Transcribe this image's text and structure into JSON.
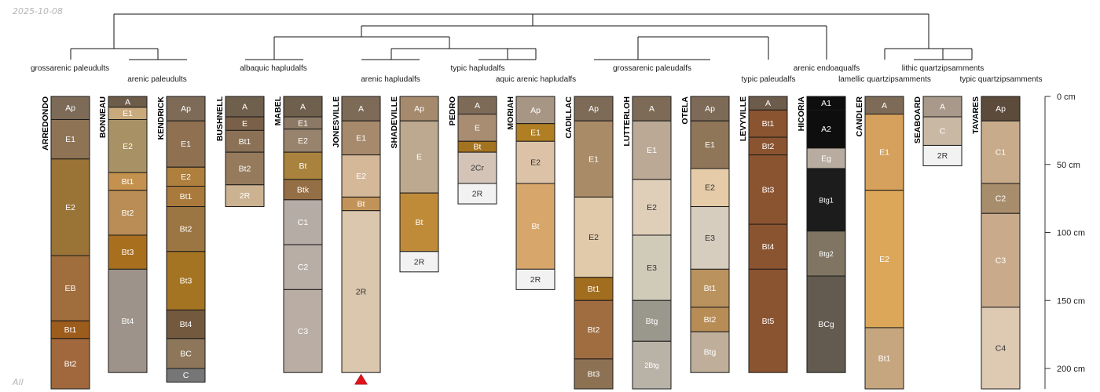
{
  "header": {
    "date": "2025-10-08",
    "footer": "All"
  },
  "depth_axis": {
    "unit": "cm",
    "ticks": [
      0,
      50,
      100,
      150,
      200
    ],
    "max_depth": 215
  },
  "taxa": [
    {
      "name": "grossarenic paleudults"
    },
    {
      "name": "arenic paleudults"
    },
    {
      "name": "albaquic hapludalfs"
    },
    {
      "name": "arenic hapludalfs"
    },
    {
      "name": "typic hapludalfs"
    },
    {
      "name": "aquic arenic hapludalfs"
    },
    {
      "name": "grossarenic paleudalfs"
    },
    {
      "name": "typic paleudalfs"
    },
    {
      "name": "arenic endoaqualfs"
    },
    {
      "name": "lamellic quartzipsamments"
    },
    {
      "name": "lithic quartzipsamments"
    },
    {
      "name": "typic quartzipsamments"
    }
  ],
  "profiles": [
    {
      "name": "ARREDONDO",
      "horizons": [
        {
          "name": "Ap",
          "top": 0,
          "bottom": 17,
          "color": "#7d6b58"
        },
        {
          "name": "E1",
          "top": 17,
          "bottom": 46,
          "color": "#8e7355"
        },
        {
          "name": "E2",
          "top": 46,
          "bottom": 117,
          "color": "#9a7337"
        },
        {
          "name": "EB",
          "top": 117,
          "bottom": 165,
          "color": "#a06d3c"
        },
        {
          "name": "Bt1",
          "top": 165,
          "bottom": 178,
          "color": "#9c5c1c"
        },
        {
          "name": "Bt2",
          "top": 178,
          "bottom": 215,
          "color": "#a0683c"
        }
      ]
    },
    {
      "name": "BONNEAU",
      "horizons": [
        {
          "name": "A",
          "top": 0,
          "bottom": 8,
          "color": "#6e5c4a"
        },
        {
          "name": "E1",
          "top": 8,
          "bottom": 17,
          "color": "#c9aa7c"
        },
        {
          "name": "E2",
          "top": 17,
          "bottom": 56,
          "color": "#a89164"
        },
        {
          "name": "Bt1",
          "top": 56,
          "bottom": 69,
          "color": "#c4914e"
        },
        {
          "name": "Bt2",
          "top": 69,
          "bottom": 102,
          "color": "#b98d55"
        },
        {
          "name": "Bt3",
          "top": 102,
          "bottom": 127,
          "color": "#a86f1e"
        },
        {
          "name": "Bt4",
          "top": 127,
          "bottom": 203,
          "color": "#9d938a"
        }
      ]
    },
    {
      "name": "KENDRICK",
      "horizons": [
        {
          "name": "Ap",
          "top": 0,
          "bottom": 18,
          "color": "#7d6b58"
        },
        {
          "name": "E1",
          "top": 18,
          "bottom": 52,
          "color": "#8f7152"
        },
        {
          "name": "E2",
          "top": 52,
          "bottom": 66,
          "color": "#ae7f3d"
        },
        {
          "name": "Bt1",
          "top": 66,
          "bottom": 81,
          "color": "#a97a3b"
        },
        {
          "name": "Bt2",
          "top": 81,
          "bottom": 114,
          "color": "#9c7642"
        },
        {
          "name": "Bt3",
          "top": 114,
          "bottom": 157,
          "color": "#a57423"
        },
        {
          "name": "Bt4",
          "top": 157,
          "bottom": 178,
          "color": "#735a3f"
        },
        {
          "name": "BC",
          "top": 178,
          "bottom": 200,
          "color": "#8d7659"
        },
        {
          "name": "C",
          "top": 200,
          "bottom": 210,
          "color": "#767676"
        }
      ]
    },
    {
      "name": "BUSHNELL",
      "horizons": [
        {
          "name": "A",
          "top": 0,
          "bottom": 15,
          "color": "#6f5f4d"
        },
        {
          "name": "E",
          "top": 15,
          "bottom": 25,
          "color": "#7a6048"
        },
        {
          "name": "Bt1",
          "top": 25,
          "bottom": 41,
          "color": "#8b7156"
        },
        {
          "name": "Bt2",
          "top": 41,
          "bottom": 65,
          "color": "#957a5c"
        },
        {
          "name": "2R",
          "top": 65,
          "bottom": 81,
          "color": "#cbb290"
        }
      ]
    },
    {
      "name": "MABEL",
      "horizons": [
        {
          "name": "A",
          "top": 0,
          "bottom": 15,
          "color": "#6f5f4d"
        },
        {
          "name": "E1",
          "top": 15,
          "bottom": 24,
          "color": "#8c7965"
        },
        {
          "name": "E2",
          "top": 24,
          "bottom": 41,
          "color": "#98846c"
        },
        {
          "name": "Bt",
          "top": 41,
          "bottom": 61,
          "color": "#a9833e"
        },
        {
          "name": "Btk",
          "top": 61,
          "bottom": 76,
          "color": "#946e44"
        },
        {
          "name": "C1",
          "top": 76,
          "bottom": 109,
          "color": "#b6aca6"
        },
        {
          "name": "C2",
          "top": 109,
          "bottom": 142,
          "color": "#b9aea6"
        },
        {
          "name": "C3",
          "top": 142,
          "bottom": 203,
          "color": "#baaea4"
        }
      ]
    },
    {
      "name": "JONESVILLE",
      "horizons": [
        {
          "name": "A",
          "top": 0,
          "bottom": 18,
          "color": "#7d6b58"
        },
        {
          "name": "E1",
          "top": 18,
          "bottom": 43,
          "color": "#a78a6c"
        },
        {
          "name": "E2",
          "top": 43,
          "bottom": 74,
          "color": "#d5b898"
        },
        {
          "name": "Bt",
          "top": 74,
          "bottom": 84,
          "color": "#c29358"
        },
        {
          "name": "2R",
          "top": 84,
          "bottom": 203,
          "color": "#dbc7ad"
        }
      ]
    },
    {
      "name": "SHADEVILLE",
      "horizons": [
        {
          "name": "Ap",
          "top": 0,
          "bottom": 18,
          "color": "#a68a6d"
        },
        {
          "name": "E",
          "top": 18,
          "bottom": 71,
          "color": "#bda98f"
        },
        {
          "name": "Bt",
          "top": 71,
          "bottom": 114,
          "color": "#c08b39"
        },
        {
          "name": "2R",
          "top": 114,
          "bottom": 129,
          "color": "#f2f2f2"
        }
      ]
    },
    {
      "name": "PEDRO",
      "horizons": [
        {
          "name": "A",
          "top": 0,
          "bottom": 13,
          "color": "#7d6b58"
        },
        {
          "name": "E",
          "top": 13,
          "bottom": 33,
          "color": "#a88d72"
        },
        {
          "name": "Bt",
          "top": 33,
          "bottom": 41,
          "color": "#a4731f"
        },
        {
          "name": "2Cr",
          "top": 41,
          "bottom": 64,
          "color": "#d3c4b7"
        },
        {
          "name": "2R",
          "top": 64,
          "bottom": 79,
          "color": "#f2f2f2"
        }
      ]
    },
    {
      "name": "MORIAH",
      "horizons": [
        {
          "name": "Ap",
          "top": 0,
          "bottom": 20,
          "color": "#a89684"
        },
        {
          "name": "E1",
          "top": 20,
          "bottom": 33,
          "color": "#b07f23"
        },
        {
          "name": "E2",
          "top": 33,
          "bottom": 64,
          "color": "#dcc3a7"
        },
        {
          "name": "Bt",
          "top": 64,
          "bottom": 127,
          "color": "#d7a66a"
        },
        {
          "name": "2R",
          "top": 127,
          "bottom": 142,
          "color": "#f2f2f2"
        }
      ]
    },
    {
      "name": "CADILLAC",
      "horizons": [
        {
          "name": "Ap",
          "top": 0,
          "bottom": 18,
          "color": "#7d6b58"
        },
        {
          "name": "E1",
          "top": 18,
          "bottom": 74,
          "color": "#aa8b67"
        },
        {
          "name": "E2",
          "top": 74,
          "bottom": 133,
          "color": "#e1caa9"
        },
        {
          "name": "Bt1",
          "top": 133,
          "bottom": 150,
          "color": "#a16d1e"
        },
        {
          "name": "Bt2",
          "top": 150,
          "bottom": 193,
          "color": "#a06d41"
        },
        {
          "name": "Bt3",
          "top": 193,
          "bottom": 215,
          "color": "#8c7253"
        }
      ]
    },
    {
      "name": "LUTTERLOH",
      "horizons": [
        {
          "name": "A",
          "top": 0,
          "bottom": 18,
          "color": "#7d6b58"
        },
        {
          "name": "E1",
          "top": 18,
          "bottom": 61,
          "color": "#bba996"
        },
        {
          "name": "E2",
          "top": 61,
          "bottom": 102,
          "color": "#dfcfb9"
        },
        {
          "name": "E3",
          "top": 102,
          "bottom": 150,
          "color": "#d0cab9"
        },
        {
          "name": "Btg",
          "top": 150,
          "bottom": 180,
          "color": "#9a978c"
        },
        {
          "name": "2Btg",
          "top": 180,
          "bottom": 215,
          "color": "#b9b2a7"
        }
      ]
    },
    {
      "name": "OTELA",
      "horizons": [
        {
          "name": "Ap",
          "top": 0,
          "bottom": 18,
          "color": "#7d6b58"
        },
        {
          "name": "E1",
          "top": 18,
          "bottom": 53,
          "color": "#8f7659"
        },
        {
          "name": "E2",
          "top": 53,
          "bottom": 81,
          "color": "#e5cba7"
        },
        {
          "name": "E3",
          "top": 81,
          "bottom": 127,
          "color": "#d6cdbf"
        },
        {
          "name": "Bt1",
          "top": 127,
          "bottom": 155,
          "color": "#b9925e"
        },
        {
          "name": "Bt2",
          "top": 155,
          "bottom": 173,
          "color": "#b88c55"
        },
        {
          "name": "Btg",
          "top": 173,
          "bottom": 203,
          "color": "#bfae9a"
        }
      ]
    },
    {
      "name": "LEVYVILLE",
      "horizons": [
        {
          "name": "A",
          "top": 0,
          "bottom": 10,
          "color": "#6d5c4c"
        },
        {
          "name": "Bt1",
          "top": 10,
          "bottom": 30,
          "color": "#8b5431"
        },
        {
          "name": "Bt2",
          "top": 30,
          "bottom": 43,
          "color": "#8b5431"
        },
        {
          "name": "Bt3",
          "top": 43,
          "bottom": 94,
          "color": "#8b5431"
        },
        {
          "name": "Bt4",
          "top": 94,
          "bottom": 127,
          "color": "#8b5431"
        },
        {
          "name": "Bt5",
          "top": 127,
          "bottom": 203,
          "color": "#8b5431"
        }
      ]
    },
    {
      "name": "HICORIA",
      "horizons": [
        {
          "name": "A1",
          "top": 0,
          "bottom": 10,
          "color": "#0e0e0e"
        },
        {
          "name": "A2",
          "top": 10,
          "bottom": 38,
          "color": "#0e0e0e"
        },
        {
          "name": "Eg",
          "top": 38,
          "bottom": 53,
          "color": "#b8aca0"
        },
        {
          "name": "Btg1",
          "top": 53,
          "bottom": 99,
          "color": "#1c1c1c"
        },
        {
          "name": "Btg2",
          "top": 99,
          "bottom": 132,
          "color": "#807563"
        },
        {
          "name": "BCg",
          "top": 132,
          "bottom": 203,
          "color": "#635b4f"
        }
      ]
    },
    {
      "name": "CANDLER",
      "horizons": [
        {
          "name": "A",
          "top": 0,
          "bottom": 13,
          "color": "#7d6b58"
        },
        {
          "name": "E1",
          "top": 13,
          "bottom": 69,
          "color": "#d5a15c"
        },
        {
          "name": "E2",
          "top": 69,
          "bottom": 170,
          "color": "#dca759"
        },
        {
          "name": "Bt1",
          "top": 170,
          "bottom": 215,
          "color": "#c6a67f"
        }
      ]
    },
    {
      "name": "SEABOARD",
      "horizons": [
        {
          "name": "A",
          "top": 0,
          "bottom": 15,
          "color": "#a8998a"
        },
        {
          "name": "C",
          "top": 15,
          "bottom": 36,
          "color": "#c9b8a4"
        },
        {
          "name": "2R",
          "top": 36,
          "bottom": 51,
          "color": "#f2f2f2"
        }
      ]
    },
    {
      "name": "TAVARES",
      "horizons": [
        {
          "name": "Ap",
          "top": 0,
          "bottom": 18,
          "color": "#5c4a3a"
        },
        {
          "name": "C1",
          "top": 18,
          "bottom": 64,
          "color": "#c8ab8a"
        },
        {
          "name": "C2",
          "top": 64,
          "bottom": 86,
          "color": "#a88d6c"
        },
        {
          "name": "C3",
          "top": 86,
          "bottom": 155,
          "color": "#c9ab8c"
        },
        {
          "name": "C4",
          "top": 155,
          "bottom": 215,
          "color": "#dec9b2"
        }
      ]
    }
  ]
}
